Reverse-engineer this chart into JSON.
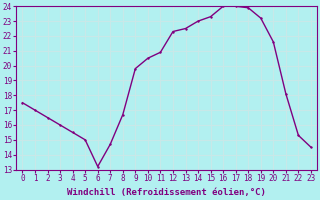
{
  "x": [
    0,
    1,
    2,
    3,
    4,
    5,
    6,
    7,
    8,
    9,
    10,
    11,
    12,
    13,
    14,
    15,
    16,
    17,
    18,
    19,
    20,
    21,
    22,
    23
  ],
  "y": [
    17.5,
    17.0,
    16.5,
    16.0,
    15.5,
    15.0,
    13.2,
    14.7,
    16.7,
    19.8,
    20.5,
    20.9,
    22.3,
    22.5,
    23.0,
    23.3,
    24.0,
    24.0,
    23.9,
    23.2,
    21.6,
    18.1,
    15.3,
    14.5
  ],
  "line_color": "#800080",
  "marker_color": "#800080",
  "bg_color": "#b2f0f0",
  "grid_color": "#c8e8e8",
  "xlabel": "Windchill (Refroidissement éolien,°C)",
  "ylim": [
    13,
    24
  ],
  "xlim_min": -0.5,
  "xlim_max": 23.5,
  "yticks": [
    13,
    14,
    15,
    16,
    17,
    18,
    19,
    20,
    21,
    22,
    23,
    24
  ],
  "xticks": [
    0,
    1,
    2,
    3,
    4,
    5,
    6,
    7,
    8,
    9,
    10,
    11,
    12,
    13,
    14,
    15,
    16,
    17,
    18,
    19,
    20,
    21,
    22,
    23
  ],
  "tick_fontsize": 5.5,
  "xlabel_fontsize": 6.5,
  "linewidth": 1.0,
  "markersize": 2.0
}
